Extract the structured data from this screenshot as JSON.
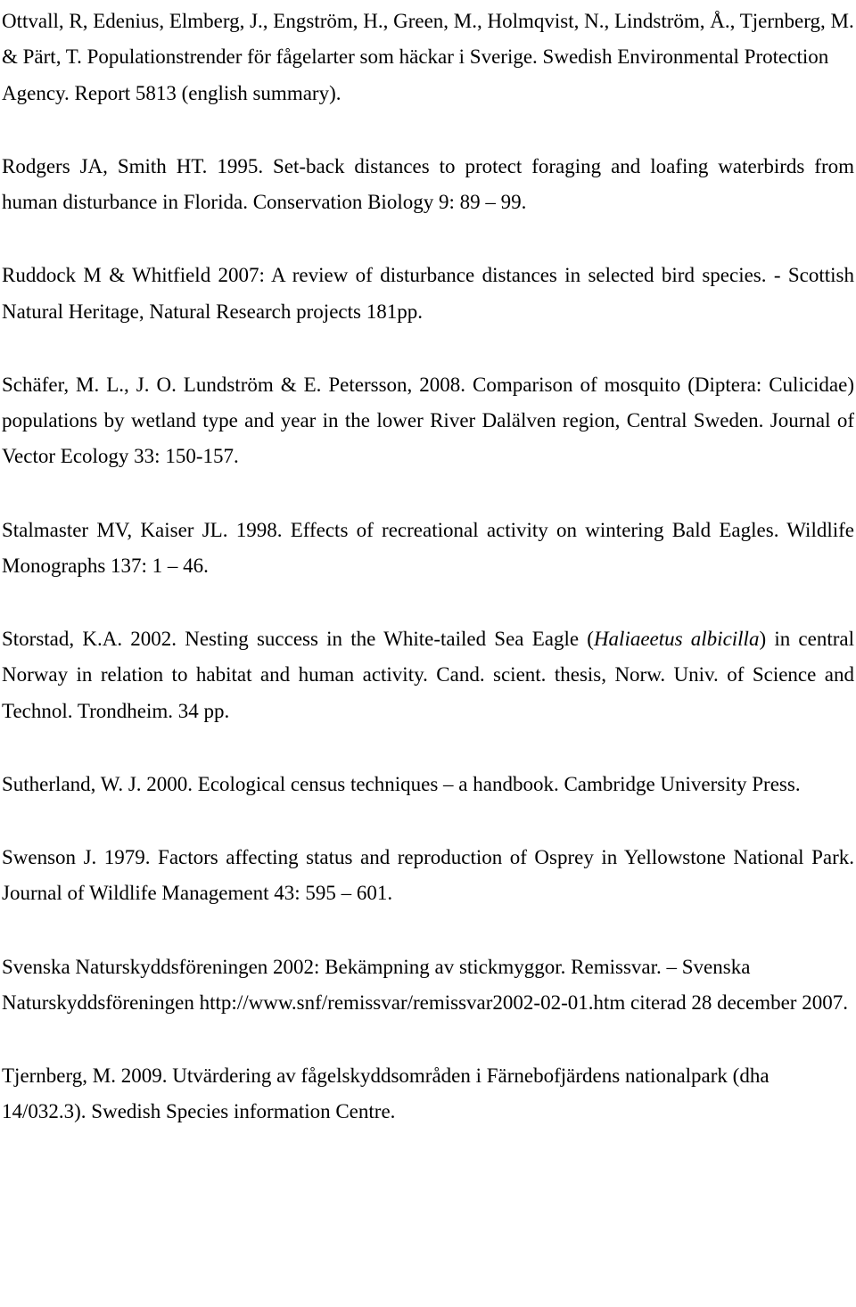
{
  "references": [
    {
      "text": "Ottvall, R, Edenius, Elmberg, J., Engström, H., Green, M., Holmqvist, N., Lindström, Å., Tjernberg, M. & Pärt, T. Populationstrender för fågelarter som häckar i Sverige. Swedish Environmental Protection Agency. Report 5813 (english summary).",
      "justify": false
    },
    {
      "text": "Rodgers JA, Smith HT. 1995. Set-back distances to protect foraging and loafing waterbirds from human disturbance in Florida. Conservation Biology 9: 89 – 99.",
      "justify": true
    },
    {
      "text": "Ruddock M & Whitfield 2007: A review of disturbance distances in selected bird species. - Scottish Natural Heritage, Natural Research projects 181pp.",
      "justify": true
    },
    {
      "text": "Schäfer, M. L., J. O. Lundström & E. Petersson, 2008. Comparison of mosquito (Diptera: Culicidae) populations by wetland type and year in the lower River Dalälven region, Central Sweden. Journal of Vector Ecology 33: 150-157.",
      "justify": true
    },
    {
      "text": "Stalmaster MV, Kaiser JL. 1998. Effects of recreational activity on wintering Bald Eagles. Wildlife Monographs 137: 1 – 46.",
      "justify": true
    },
    {
      "pre": "Storstad, K.A. 2002. Nesting success in the White-tailed Sea Eagle (",
      "italic": "Haliaeetus albicilla",
      "post": ") in central Norway in relation to habitat and human activity. Cand. scient. thesis, Norw. Univ. of Science and Technol. Trondheim. 34 pp.",
      "justify": true
    },
    {
      "text": "Sutherland, W. J. 2000. Ecological census techniques – a handbook. Cambridge University Press.",
      "justify": true
    },
    {
      "text": "Swenson J. 1979. Factors affecting status and reproduction of Osprey in Yellowstone National Park. Journal of Wildlife Management 43: 595 – 601.",
      "justify": true
    },
    {
      "text": "Svenska Naturskyddsföreningen 2002: Bekämpning av stickmyggor. Remissvar. – Svenska Naturskyddsföreningen http://www.snf/remissvar/remissvar2002-02-01.htm citerad 28 december 2007.",
      "justify": false
    },
    {
      "text": "Tjernberg, M. 2009. Utvärdering av fågelskyddsområden i Färnebofjärdens nationalpark (dha 14/032.3). Swedish Species information Centre.",
      "justify": false
    }
  ]
}
